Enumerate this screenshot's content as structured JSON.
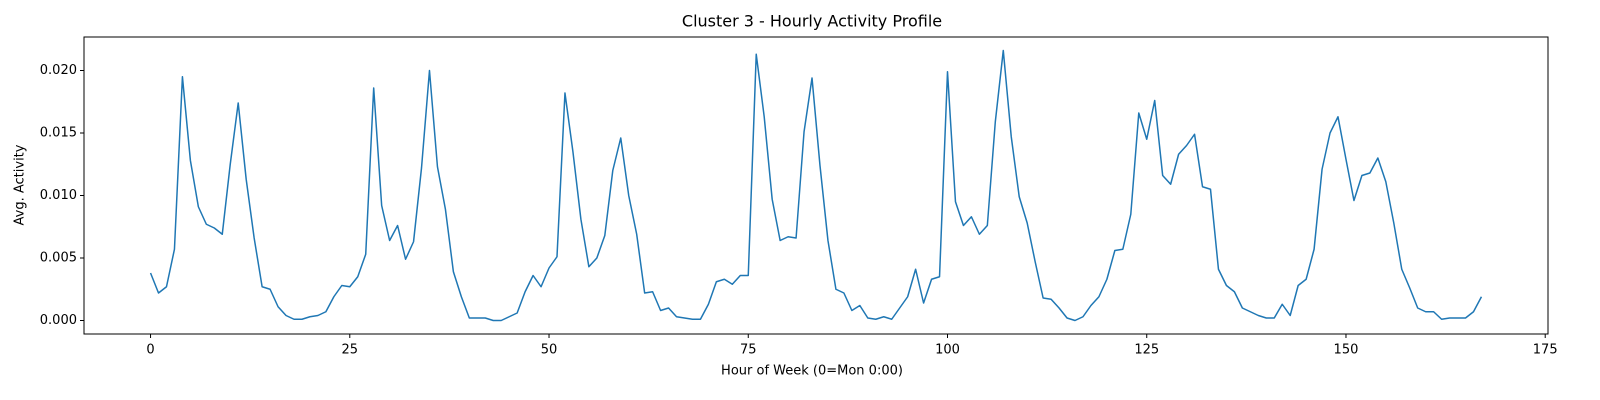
{
  "chart_data": {
    "type": "line",
    "title": "Cluster 3 - Hourly Activity Profile",
    "x_label": "Hour of Week (0=Mon 0:00)",
    "y_label": "Avg. Activity",
    "color": "#1f77b4",
    "x": [
      0,
      1,
      2,
      3,
      4,
      5,
      6,
      7,
      8,
      9,
      10,
      11,
      12,
      13,
      14,
      15,
      16,
      17,
      18,
      19,
      20,
      21,
      22,
      23,
      24,
      25,
      26,
      27,
      28,
      29,
      30,
      31,
      32,
      33,
      34,
      35,
      36,
      37,
      38,
      39,
      40,
      41,
      42,
      43,
      44,
      45,
      46,
      47,
      48,
      49,
      50,
      51,
      52,
      53,
      54,
      55,
      56,
      57,
      58,
      59,
      60,
      61,
      62,
      63,
      64,
      65,
      66,
      67,
      68,
      69,
      70,
      71,
      72,
      73,
      74,
      75,
      76,
      77,
      78,
      79,
      80,
      81,
      82,
      83,
      84,
      85,
      86,
      87,
      88,
      89,
      90,
      91,
      92,
      93,
      94,
      95,
      96,
      97,
      98,
      99,
      100,
      101,
      102,
      103,
      104,
      105,
      106,
      107,
      108,
      109,
      110,
      111,
      112,
      113,
      114,
      115,
      116,
      117,
      118,
      119,
      120,
      121,
      122,
      123,
      124,
      125,
      126,
      127,
      128,
      129,
      130,
      131,
      132,
      133,
      134,
      135,
      136,
      137,
      138,
      139,
      140,
      141,
      142,
      143,
      144,
      145,
      146,
      147,
      148,
      149,
      150,
      151,
      152,
      153,
      154,
      155,
      156,
      157,
      158,
      159,
      160,
      161,
      162,
      163,
      164,
      165,
      166,
      167
    ],
    "values": [
      0.0038,
      0.0022,
      0.0027,
      0.0057,
      0.0195,
      0.0128,
      0.0091,
      0.0077,
      0.0074,
      0.0069,
      0.0125,
      0.0174,
      0.0113,
      0.0066,
      0.0027,
      0.0025,
      0.0011,
      0.0004,
      0.0001,
      0.0001,
      0.0003,
      0.0004,
      0.0007,
      0.0019,
      0.0028,
      0.0027,
      0.0035,
      0.0053,
      0.0186,
      0.0092,
      0.0064,
      0.0076,
      0.0049,
      0.0063,
      0.0122,
      0.02,
      0.0123,
      0.0089,
      0.0039,
      0.0019,
      0.0002,
      0.0002,
      0.0002,
      0.0,
      0.0,
      0.0003,
      0.0006,
      0.0023,
      0.0036,
      0.0027,
      0.0042,
      0.0051,
      0.0182,
      0.0135,
      0.0081,
      0.0043,
      0.005,
      0.0068,
      0.012,
      0.0146,
      0.01,
      0.0069,
      0.0022,
      0.0023,
      0.0008,
      0.001,
      0.0003,
      0.0002,
      0.0001,
      0.0001,
      0.0013,
      0.0031,
      0.0033,
      0.0029,
      0.0036,
      0.0036,
      0.0213,
      0.0163,
      0.0097,
      0.0064,
      0.0067,
      0.0066,
      0.0151,
      0.0194,
      0.0124,
      0.0064,
      0.0025,
      0.0022,
      0.0008,
      0.0012,
      0.0002,
      0.0001,
      0.0003,
      0.0001,
      0.001,
      0.0019,
      0.0041,
      0.0014,
      0.0033,
      0.0035,
      0.0199,
      0.0095,
      0.0076,
      0.0083,
      0.0069,
      0.0076,
      0.0159,
      0.0216,
      0.0147,
      0.0099,
      0.0078,
      0.0047,
      0.0018,
      0.0017,
      0.001,
      0.0002,
      0.0,
      0.0003,
      0.0012,
      0.0019,
      0.0033,
      0.0056,
      0.0057,
      0.0085,
      0.0166,
      0.0145,
      0.0176,
      0.0116,
      0.0109,
      0.0133,
      0.014,
      0.0149,
      0.0107,
      0.0105,
      0.0041,
      0.0028,
      0.0023,
      0.001,
      0.0007,
      0.0004,
      0.0002,
      0.0002,
      0.0013,
      0.0004,
      0.0028,
      0.0033,
      0.0057,
      0.0121,
      0.015,
      0.0163,
      0.0129,
      0.0096,
      0.0116,
      0.0118,
      0.013,
      0.0111,
      0.0078,
      0.0041,
      0.0026,
      0.001,
      0.0007,
      0.0007,
      0.0001,
      0.0002,
      0.0002,
      0.0002,
      0.0007,
      0.0019
    ],
    "xlim": [
      -8.35,
      175.35
    ],
    "xticks": [
      0,
      25,
      50,
      75,
      100,
      125,
      150,
      175
    ],
    "ylim": [
      -0.00108,
      0.02268
    ],
    "yticks": [
      {
        "value": 0,
        "label": "0.000"
      },
      0.005,
      {
        "value": 0.01,
        "label": "0.010"
      },
      0.015,
      {
        "value": 0.02,
        "label": "0.020"
      }
    ],
    "grid": false
  }
}
